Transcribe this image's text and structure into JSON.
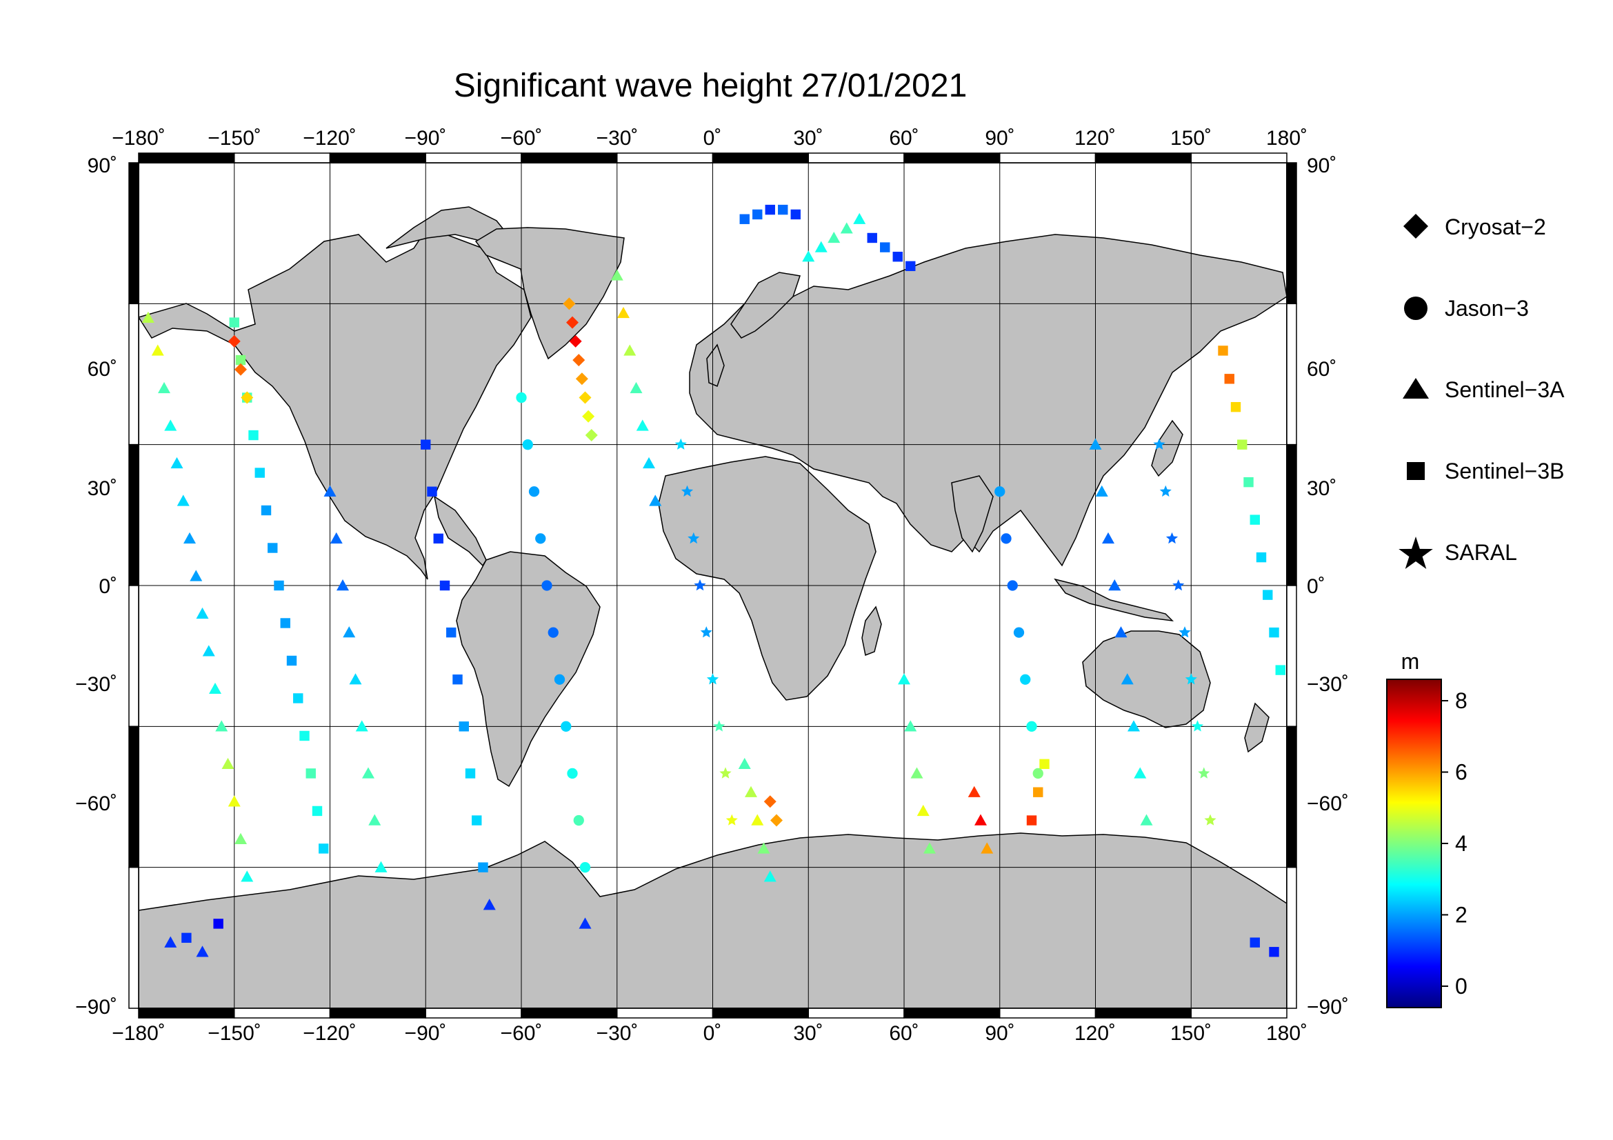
{
  "title": "Significant wave height 27/01/2021",
  "axes": {
    "lon_ticks": [
      "−180˚",
      "−150˚",
      "−120˚",
      "−90˚",
      "−60˚",
      "−30˚",
      "0˚",
      "30˚",
      "60˚",
      "90˚",
      "120˚",
      "150˚",
      "180˚"
    ],
    "lat_ticks_left": [
      "90˚",
      "60˚",
      "30˚",
      "0˚",
      "−30˚",
      "−60˚",
      "−90˚"
    ],
    "lat_ticks_right": [
      "90˚",
      "60˚",
      "30˚",
      "0˚",
      "−30˚",
      "−60˚",
      "−90˚"
    ],
    "lon_range": [
      -180,
      180
    ],
    "lat_range": [
      -90,
      90
    ],
    "grid": true
  },
  "legend": {
    "placement": "right",
    "items": [
      {
        "label": "Cryosat−2",
        "marker": "diamond"
      },
      {
        "label": "Jason−3",
        "marker": "circle"
      },
      {
        "label": "Sentinel−3A",
        "marker": "triangle"
      },
      {
        "label": "Sentinel−3B",
        "marker": "square"
      },
      {
        "label": "SARAL",
        "marker": "star"
      }
    ]
  },
  "colorbar": {
    "unit": "m",
    "ticks": [
      "0",
      "2",
      "4",
      "6",
      "8"
    ],
    "range": [
      -0.6,
      8.6
    ],
    "colormap": [
      "#00007f",
      "#0000ff",
      "#007fff",
      "#00ffff",
      "#7fff7f",
      "#ffff00",
      "#ff7f00",
      "#ff0000",
      "#7f0000"
    ]
  },
  "colors": {
    "land": "#c0c0c0",
    "ocean": "#ffffff",
    "frame": "#000000"
  },
  "chart_data": {
    "type": "scatter",
    "title": "Significant wave height 27/01/2021",
    "xlabel": "",
    "ylabel": "",
    "xlim": [
      -180,
      180
    ],
    "ylim": [
      -90,
      90
    ],
    "series": [
      {
        "name": "Sentinel−3A",
        "marker": "triangle",
        "points": [
          [
            -177,
            57,
            4.5
          ],
          [
            -174,
            50,
            5.0
          ],
          [
            -172,
            42,
            3.5
          ],
          [
            -170,
            34,
            3.0
          ],
          [
            -168,
            26,
            2.5
          ],
          [
            -166,
            18,
            2.5
          ],
          [
            -164,
            10,
            2.0
          ],
          [
            -162,
            2,
            2.0
          ],
          [
            -160,
            -6,
            2.5
          ],
          [
            -158,
            -14,
            2.5
          ],
          [
            -156,
            -22,
            3.0
          ],
          [
            -154,
            -30,
            3.5
          ],
          [
            -152,
            -38,
            4.5
          ],
          [
            -150,
            -46,
            5.0
          ],
          [
            -148,
            -54,
            4.0
          ],
          [
            -146,
            -62,
            3.0
          ],
          [
            -120,
            20,
            1.5
          ],
          [
            -118,
            10,
            1.5
          ],
          [
            -116,
            0,
            1.5
          ],
          [
            -114,
            -10,
            2.0
          ],
          [
            -112,
            -20,
            2.5
          ],
          [
            -110,
            -30,
            3.0
          ],
          [
            -108,
            -40,
            3.5
          ],
          [
            -106,
            -50,
            3.5
          ],
          [
            -104,
            -60,
            3.0
          ],
          [
            -30,
            66,
            4.0
          ],
          [
            -28,
            58,
            5.5
          ],
          [
            -26,
            50,
            4.5
          ],
          [
            -24,
            42,
            3.5
          ],
          [
            -22,
            34,
            3.0
          ],
          [
            -20,
            26,
            2.5
          ],
          [
            -18,
            18,
            2.0
          ],
          [
            10,
            -38,
            3.5
          ],
          [
            12,
            -44,
            4.5
          ],
          [
            14,
            -50,
            5.0
          ],
          [
            16,
            -56,
            4.0
          ],
          [
            18,
            -62,
            3.0
          ],
          [
            30,
            70,
            3.0
          ],
          [
            34,
            72,
            3.0
          ],
          [
            38,
            74,
            3.5
          ],
          [
            42,
            76,
            3.5
          ],
          [
            46,
            78,
            3.0
          ],
          [
            60,
            -20,
            3.0
          ],
          [
            62,
            -30,
            3.5
          ],
          [
            64,
            -40,
            4.0
          ],
          [
            66,
            -48,
            5.0
          ],
          [
            68,
            -56,
            4.0
          ],
          [
            82,
            -44,
            7.0
          ],
          [
            84,
            -50,
            7.5
          ],
          [
            86,
            -56,
            6.0
          ],
          [
            120,
            30,
            2.0
          ],
          [
            122,
            20,
            2.0
          ],
          [
            124,
            10,
            1.5
          ],
          [
            126,
            0,
            1.5
          ],
          [
            128,
            -10,
            1.5
          ],
          [
            130,
            -20,
            2.0
          ],
          [
            132,
            -30,
            2.5
          ],
          [
            134,
            -40,
            3.0
          ],
          [
            136,
            -50,
            3.5
          ],
          [
            -170,
            -76,
            1.0
          ],
          [
            -160,
            -78,
            1.0
          ],
          [
            -40,
            -72,
            1.0
          ],
          [
            -70,
            -68,
            1.0
          ]
        ]
      },
      {
        "name": "Sentinel−3B",
        "marker": "square",
        "points": [
          [
            -150,
            56,
            3.5
          ],
          [
            -148,
            48,
            4.0
          ],
          [
            -146,
            40,
            3.5
          ],
          [
            -144,
            32,
            3.0
          ],
          [
            -142,
            24,
            2.5
          ],
          [
            -140,
            16,
            2.0
          ],
          [
            -138,
            8,
            2.0
          ],
          [
            -136,
            0,
            2.0
          ],
          [
            -134,
            -8,
            2.0
          ],
          [
            -132,
            -16,
            2.0
          ],
          [
            -130,
            -24,
            2.5
          ],
          [
            -128,
            -32,
            3.0
          ],
          [
            -126,
            -40,
            3.5
          ],
          [
            -124,
            -48,
            3.0
          ],
          [
            -122,
            -56,
            2.5
          ],
          [
            -90,
            30,
            1.0
          ],
          [
            -88,
            20,
            1.0
          ],
          [
            -86,
            10,
            1.0
          ],
          [
            -84,
            0,
            1.0
          ],
          [
            -82,
            -10,
            1.5
          ],
          [
            -80,
            -20,
            1.5
          ],
          [
            -78,
            -30,
            2.0
          ],
          [
            -76,
            -40,
            2.5
          ],
          [
            -74,
            -50,
            2.5
          ],
          [
            -72,
            -60,
            2.0
          ],
          [
            10,
            78,
            1.5
          ],
          [
            14,
            79,
            1.5
          ],
          [
            18,
            80,
            1.0
          ],
          [
            22,
            80,
            1.5
          ],
          [
            26,
            79,
            1.0
          ],
          [
            50,
            74,
            1.0
          ],
          [
            54,
            72,
            1.5
          ],
          [
            58,
            70,
            1.0
          ],
          [
            62,
            68,
            1.0
          ],
          [
            160,
            50,
            6.0
          ],
          [
            162,
            44,
            6.5
          ],
          [
            164,
            38,
            5.5
          ],
          [
            166,
            30,
            4.5
          ],
          [
            168,
            22,
            3.5
          ],
          [
            170,
            14,
            3.0
          ],
          [
            172,
            6,
            2.5
          ],
          [
            174,
            -2,
            2.5
          ],
          [
            176,
            -10,
            2.5
          ],
          [
            178,
            -18,
            3.0
          ],
          [
            100,
            -50,
            7.0
          ],
          [
            102,
            -44,
            6.0
          ],
          [
            104,
            -38,
            5.0
          ],
          [
            -165,
            -75,
            1.0
          ],
          [
            -155,
            -72,
            0.5
          ],
          [
            170,
            -76,
            1.0
          ],
          [
            176,
            -78,
            0.8
          ]
        ]
      },
      {
        "name": "Cryosat−2",
        "marker": "diamond",
        "points": [
          [
            -45,
            60,
            6.0
          ],
          [
            -44,
            56,
            7.0
          ],
          [
            -43,
            52,
            7.5
          ],
          [
            -42,
            48,
            6.5
          ],
          [
            -41,
            44,
            6.0
          ],
          [
            -40,
            40,
            5.5
          ],
          [
            -39,
            36,
            5.0
          ],
          [
            -38,
            32,
            4.5
          ],
          [
            -150,
            52,
            7.0
          ],
          [
            -148,
            46,
            6.5
          ],
          [
            -146,
            40,
            5.5
          ],
          [
            18,
            -46,
            6.5
          ],
          [
            20,
            -50,
            6.0
          ]
        ]
      },
      {
        "name": "Jason−3",
        "marker": "circle",
        "points": [
          [
            -60,
            40,
            3.0
          ],
          [
            -58,
            30,
            2.5
          ],
          [
            -56,
            20,
            2.0
          ],
          [
            -54,
            10,
            2.0
          ],
          [
            -52,
            0,
            1.5
          ],
          [
            -50,
            -10,
            1.5
          ],
          [
            -48,
            -20,
            2.0
          ],
          [
            -46,
            -30,
            2.5
          ],
          [
            -44,
            -40,
            3.0
          ],
          [
            -42,
            -50,
            3.5
          ],
          [
            -40,
            -60,
            3.0
          ],
          [
            90,
            20,
            2.0
          ],
          [
            92,
            10,
            1.5
          ],
          [
            94,
            0,
            1.5
          ],
          [
            96,
            -10,
            2.0
          ],
          [
            98,
            -20,
            2.5
          ],
          [
            100,
            -30,
            3.0
          ],
          [
            102,
            -40,
            4.0
          ]
        ]
      },
      {
        "name": "SARAL",
        "marker": "star",
        "points": [
          [
            -10,
            30,
            2.5
          ],
          [
            -8,
            20,
            2.0
          ],
          [
            -6,
            10,
            2.0
          ],
          [
            -4,
            0,
            1.5
          ],
          [
            -2,
            -10,
            2.0
          ],
          [
            0,
            -20,
            2.5
          ],
          [
            2,
            -30,
            3.5
          ],
          [
            4,
            -40,
            4.5
          ],
          [
            6,
            -50,
            5.0
          ],
          [
            140,
            30,
            2.0
          ],
          [
            142,
            20,
            2.0
          ],
          [
            144,
            10,
            1.5
          ],
          [
            146,
            0,
            1.5
          ],
          [
            148,
            -10,
            2.0
          ],
          [
            150,
            -20,
            2.5
          ],
          [
            152,
            -30,
            3.0
          ],
          [
            154,
            -40,
            4.0
          ],
          [
            156,
            -50,
            4.5
          ]
        ]
      }
    ]
  }
}
